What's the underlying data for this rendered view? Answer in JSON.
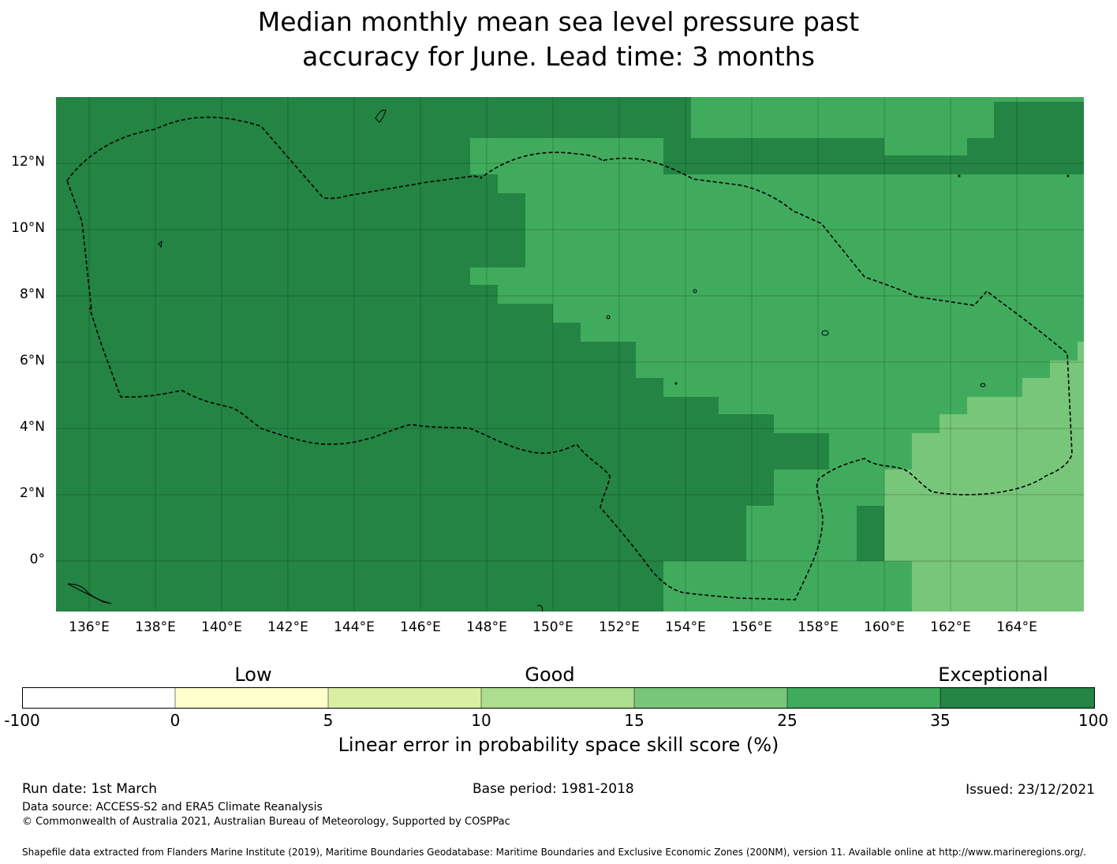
{
  "title_line1": "Median monthly mean sea level pressure past",
  "title_line2": "accuracy for June. Lead time: 3 months",
  "map": {
    "lon_range": [
      135,
      166
    ],
    "lat_range": [
      -1.5,
      14
    ],
    "y_ticks": [
      "12°N",
      "10°N",
      "8°N",
      "6°N",
      "4°N",
      "2°N",
      "0°"
    ],
    "x_ticks": [
      "136°E",
      "138°E",
      "140°E",
      "142°E",
      "144°E",
      "146°E",
      "148°E",
      "150°E",
      "152°E",
      "154°E",
      "156°E",
      "158°E",
      "160°E",
      "162°E",
      "164°E"
    ],
    "colors": {
      "exceptional": "#238443",
      "very_good": "#41ab5d",
      "good": "#78c679"
    }
  },
  "colorbar": {
    "categories": [
      "Low",
      "Good",
      "Exceptional"
    ],
    "ticks": [
      "-100",
      "0",
      "5",
      "10",
      "15",
      "25",
      "35",
      "100"
    ],
    "colors": [
      "#ffffff",
      "#ffffcc",
      "#d9f0a3",
      "#addd8e",
      "#78c679",
      "#41ab5d",
      "#238443"
    ],
    "label": "Linear error in probability space skill score (%)"
  },
  "footer": {
    "run_date": "Run date: 1st March",
    "base_period": "Base period: 1981-2018",
    "issued": "Issued: 23/12/2021",
    "data_source": "Data source: ACCESS-S2 and ERA5 Climate Reanalysis",
    "copyright": "© Commonwealth of Australia 2021, Australian Bureau of Meteorology, Supported by COSPPac",
    "shapefile": "Shapefile data extracted from Flanders Marine Institute (2019), Maritime Boundaries Geodatabase: Maritime Boundaries and Exclusive Economic Zones (200NM), version 11. Available online at http://www.marineregions.org/."
  }
}
